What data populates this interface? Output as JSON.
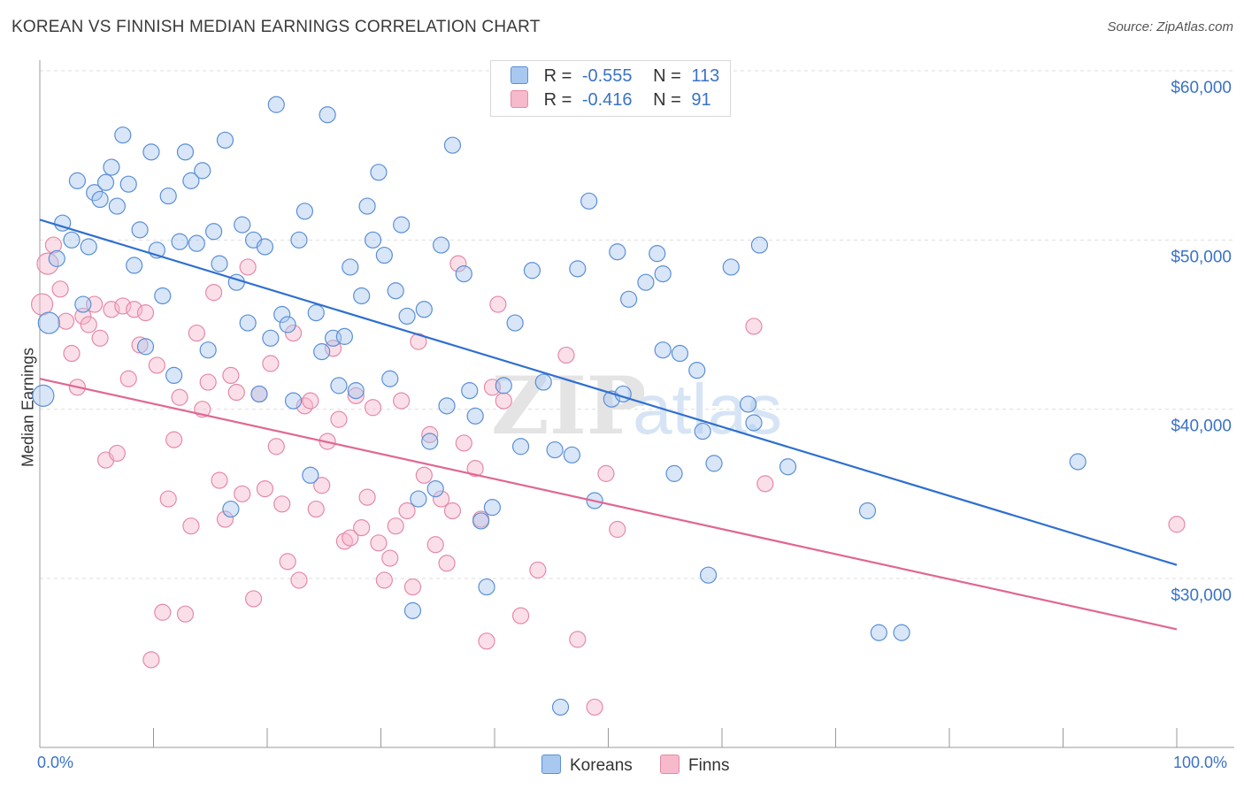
{
  "header": {
    "title": "KOREAN VS FINNISH MEDIAN EARNINGS CORRELATION CHART",
    "source": "Source: ZipAtlas.com"
  },
  "colors": {
    "korean_fill": "#a9c8f0",
    "korean_stroke": "#5b8fd6",
    "korean_line": "#2f6fd0",
    "finn_fill": "#f7b9cc",
    "finn_stroke": "#e58aa6",
    "finn_line": "#e06792",
    "axis_label": "#3a72c8"
  },
  "legend": {
    "korean": {
      "r_label": "R =",
      "r_value": "-0.555",
      "n_label": "N =",
      "n_value": "113"
    },
    "finn": {
      "r_label": "R =",
      "r_value": "-0.416",
      "n_label": "N =",
      "n_value": "91"
    }
  },
  "chart_data": {
    "type": "scatter",
    "title": "KOREAN VS FINNISH MEDIAN EARNINGS CORRELATION CHART",
    "xlabel": "",
    "ylabel": "Median Earnings",
    "xlim": [
      0,
      100
    ],
    "ylim": [
      20000,
      62000
    ],
    "x_tick_labels": [
      "0.0%",
      "100.0%"
    ],
    "y_ticks": [
      30000,
      40000,
      50000,
      60000
    ],
    "y_tick_labels": [
      "$30,000",
      "$40,000",
      "$50,000",
      "$60,000"
    ],
    "grid": true,
    "legend_position": "top-center",
    "watermark": "ZIPatlas",
    "series": [
      {
        "name": "Koreans",
        "r": -0.555,
        "n": 113,
        "trend": {
          "x": [
            0,
            100
          ],
          "y": [
            51200,
            30800
          ]
        },
        "points": [
          [
            0.3,
            40800
          ],
          [
            0.8,
            45100
          ],
          [
            1.5,
            48900
          ],
          [
            2,
            51000
          ],
          [
            2.8,
            50000
          ],
          [
            3.3,
            53500
          ],
          [
            3.8,
            46200
          ],
          [
            4.3,
            49600
          ],
          [
            4.8,
            52800
          ],
          [
            5.3,
            52400
          ],
          [
            5.8,
            53400
          ],
          [
            6.3,
            54300
          ],
          [
            6.8,
            52000
          ],
          [
            7.3,
            56200
          ],
          [
            7.8,
            53300
          ],
          [
            8.3,
            48500
          ],
          [
            8.8,
            50600
          ],
          [
            9.3,
            43700
          ],
          [
            9.8,
            55200
          ],
          [
            10.3,
            49400
          ],
          [
            10.8,
            46700
          ],
          [
            11.3,
            52600
          ],
          [
            11.8,
            42000
          ],
          [
            12.3,
            49900
          ],
          [
            12.8,
            55200
          ],
          [
            13.3,
            53500
          ],
          [
            13.8,
            49800
          ],
          [
            14.3,
            54100
          ],
          [
            14.8,
            43500
          ],
          [
            15.3,
            50500
          ],
          [
            15.8,
            48600
          ],
          [
            16.3,
            55900
          ],
          [
            16.8,
            34100
          ],
          [
            17.3,
            47500
          ],
          [
            17.8,
            50900
          ],
          [
            18.3,
            45100
          ],
          [
            18.8,
            50000
          ],
          [
            19.3,
            40900
          ],
          [
            19.8,
            49600
          ],
          [
            20.3,
            44200
          ],
          [
            20.8,
            58000
          ],
          [
            21.3,
            45600
          ],
          [
            21.8,
            45000
          ],
          [
            22.3,
            40500
          ],
          [
            22.8,
            50000
          ],
          [
            23.3,
            51700
          ],
          [
            23.8,
            36100
          ],
          [
            24.3,
            45700
          ],
          [
            24.8,
            43400
          ],
          [
            25.3,
            57400
          ],
          [
            25.8,
            44200
          ],
          [
            26.3,
            41400
          ],
          [
            26.8,
            44300
          ],
          [
            27.3,
            48400
          ],
          [
            27.8,
            41100
          ],
          [
            28.3,
            46700
          ],
          [
            28.8,
            52000
          ],
          [
            29.3,
            50000
          ],
          [
            29.8,
            54000
          ],
          [
            30.3,
            49100
          ],
          [
            30.8,
            41800
          ],
          [
            31.3,
            47000
          ],
          [
            31.8,
            50900
          ],
          [
            32.3,
            45500
          ],
          [
            32.8,
            28100
          ],
          [
            33.3,
            34700
          ],
          [
            33.8,
            45900
          ],
          [
            34.3,
            38100
          ],
          [
            34.8,
            35300
          ],
          [
            35.3,
            49700
          ],
          [
            35.8,
            40200
          ],
          [
            36.3,
            55600
          ],
          [
            37.3,
            48000
          ],
          [
            37.8,
            41100
          ],
          [
            38.3,
            39600
          ],
          [
            38.8,
            33400
          ],
          [
            39.3,
            29500
          ],
          [
            39.8,
            34200
          ],
          [
            40.8,
            41400
          ],
          [
            41.8,
            45100
          ],
          [
            42.3,
            37800
          ],
          [
            43.3,
            48200
          ],
          [
            44.3,
            41600
          ],
          [
            45.3,
            37600
          ],
          [
            45.8,
            22400
          ],
          [
            46.8,
            37300
          ],
          [
            47.3,
            48300
          ],
          [
            48.3,
            52300
          ],
          [
            48.8,
            34600
          ],
          [
            50.3,
            40600
          ],
          [
            50.8,
            49300
          ],
          [
            51.3,
            40900
          ],
          [
            51.8,
            46500
          ],
          [
            53.3,
            47500
          ],
          [
            54.3,
            49200
          ],
          [
            54.8,
            48000
          ],
          [
            54.8,
            43500
          ],
          [
            55.8,
            36200
          ],
          [
            56.3,
            43300
          ],
          [
            57.8,
            42300
          ],
          [
            58.3,
            38700
          ],
          [
            58.8,
            30200
          ],
          [
            59.3,
            36800
          ],
          [
            60.8,
            48400
          ],
          [
            62.3,
            40300
          ],
          [
            62.8,
            39200
          ],
          [
            63.3,
            49700
          ],
          [
            65.8,
            36600
          ],
          [
            72.8,
            34000
          ],
          [
            73.8,
            26800
          ],
          [
            75.8,
            26800
          ],
          [
            91.3,
            36900
          ]
        ]
      },
      {
        "name": "Finns",
        "r": -0.416,
        "n": 91,
        "trend": {
          "x": [
            0,
            100
          ],
          "y": [
            41800,
            27000
          ]
        },
        "points": [
          [
            0.2,
            46200
          ],
          [
            0.7,
            48600
          ],
          [
            1.2,
            49700
          ],
          [
            1.8,
            47100
          ],
          [
            2.3,
            45200
          ],
          [
            2.8,
            43300
          ],
          [
            3.3,
            41300
          ],
          [
            3.8,
            45500
          ],
          [
            4.3,
            45000
          ],
          [
            4.8,
            46200
          ],
          [
            5.3,
            44200
          ],
          [
            5.8,
            37000
          ],
          [
            6.3,
            45900
          ],
          [
            6.8,
            37400
          ],
          [
            7.3,
            46100
          ],
          [
            7.8,
            41800
          ],
          [
            8.3,
            45900
          ],
          [
            8.8,
            43800
          ],
          [
            9.3,
            45700
          ],
          [
            9.8,
            25200
          ],
          [
            10.3,
            42600
          ],
          [
            10.8,
            28000
          ],
          [
            11.3,
            34700
          ],
          [
            11.8,
            38200
          ],
          [
            12.3,
            40700
          ],
          [
            12.8,
            27900
          ],
          [
            13.3,
            33100
          ],
          [
            13.8,
            44500
          ],
          [
            14.3,
            40000
          ],
          [
            14.8,
            41600
          ],
          [
            15.3,
            46900
          ],
          [
            15.8,
            35800
          ],
          [
            16.3,
            33500
          ],
          [
            16.8,
            42000
          ],
          [
            17.3,
            41000
          ],
          [
            17.8,
            35000
          ],
          [
            18.3,
            48400
          ],
          [
            18.8,
            28800
          ],
          [
            19.3,
            40900
          ],
          [
            19.8,
            35300
          ],
          [
            20.3,
            42700
          ],
          [
            20.8,
            37800
          ],
          [
            21.3,
            34400
          ],
          [
            21.8,
            31000
          ],
          [
            22.3,
            44500
          ],
          [
            22.8,
            29900
          ],
          [
            23.3,
            40200
          ],
          [
            23.8,
            40500
          ],
          [
            24.3,
            34100
          ],
          [
            24.8,
            35500
          ],
          [
            25.3,
            38100
          ],
          [
            25.8,
            43600
          ],
          [
            26.3,
            39400
          ],
          [
            26.8,
            32200
          ],
          [
            27.3,
            32400
          ],
          [
            27.8,
            40800
          ],
          [
            28.3,
            33000
          ],
          [
            28.8,
            34800
          ],
          [
            29.3,
            40100
          ],
          [
            29.8,
            32100
          ],
          [
            30.3,
            29900
          ],
          [
            30.8,
            31200
          ],
          [
            31.3,
            33100
          ],
          [
            31.8,
            40500
          ],
          [
            32.3,
            34000
          ],
          [
            32.8,
            29500
          ],
          [
            33.3,
            44000
          ],
          [
            33.8,
            36100
          ],
          [
            34.3,
            38500
          ],
          [
            34.8,
            32000
          ],
          [
            35.3,
            34700
          ],
          [
            35.8,
            30900
          ],
          [
            36.3,
            34000
          ],
          [
            36.8,
            48600
          ],
          [
            37.3,
            38000
          ],
          [
            38.3,
            36500
          ],
          [
            38.8,
            33500
          ],
          [
            39.3,
            26300
          ],
          [
            39.8,
            41300
          ],
          [
            40.3,
            46200
          ],
          [
            40.8,
            40500
          ],
          [
            42.3,
            27800
          ],
          [
            43.8,
            30500
          ],
          [
            46.3,
            43200
          ],
          [
            47.3,
            26400
          ],
          [
            48.8,
            22400
          ],
          [
            49.8,
            36200
          ],
          [
            50.8,
            32900
          ],
          [
            62.8,
            44900
          ],
          [
            63.8,
            35600
          ],
          [
            100,
            33200
          ]
        ]
      }
    ]
  },
  "bottom_legend": {
    "korean_label": "Koreans",
    "finn_label": "Finns"
  }
}
